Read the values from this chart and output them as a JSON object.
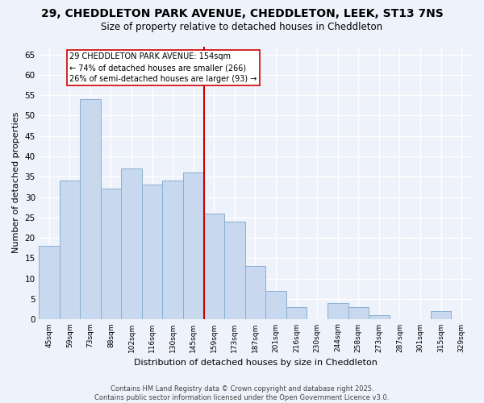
{
  "title": "29, CHEDDLETON PARK AVENUE, CHEDDLETON, LEEK, ST13 7NS",
  "subtitle": "Size of property relative to detached houses in Cheddleton",
  "xlabel": "Distribution of detached houses by size in Cheddleton",
  "ylabel": "Number of detached properties",
  "categories": [
    "45sqm",
    "59sqm",
    "73sqm",
    "88sqm",
    "102sqm",
    "116sqm",
    "130sqm",
    "145sqm",
    "159sqm",
    "173sqm",
    "187sqm",
    "201sqm",
    "216sqm",
    "230sqm",
    "244sqm",
    "258sqm",
    "273sqm",
    "287sqm",
    "301sqm",
    "315sqm",
    "329sqm"
  ],
  "values": [
    18,
    34,
    54,
    32,
    37,
    33,
    34,
    36,
    26,
    24,
    13,
    7,
    3,
    0,
    4,
    3,
    1,
    0,
    0,
    2,
    0
  ],
  "bar_color": "#c8d8ee",
  "bar_edge_color": "#8ab0d0",
  "background_color": "#eef2fa",
  "grid_color": "#ffffff",
  "ylim": [
    0,
    67
  ],
  "yticks": [
    0,
    5,
    10,
    15,
    20,
    25,
    30,
    35,
    40,
    45,
    50,
    55,
    60,
    65
  ],
  "vline_color": "#cc0000",
  "annotation_title": "29 CHEDDLETON PARK AVENUE: 154sqm",
  "annotation_line1": "← 74% of detached houses are smaller (266)",
  "annotation_line2": "26% of semi-detached houses are larger (93) →",
  "annotation_box_color": "#ffffff",
  "annotation_box_edge": "#cc0000",
  "footer_line1": "Contains HM Land Registry data © Crown copyright and database right 2025.",
  "footer_line2": "Contains public sector information licensed under the Open Government Licence v3.0."
}
